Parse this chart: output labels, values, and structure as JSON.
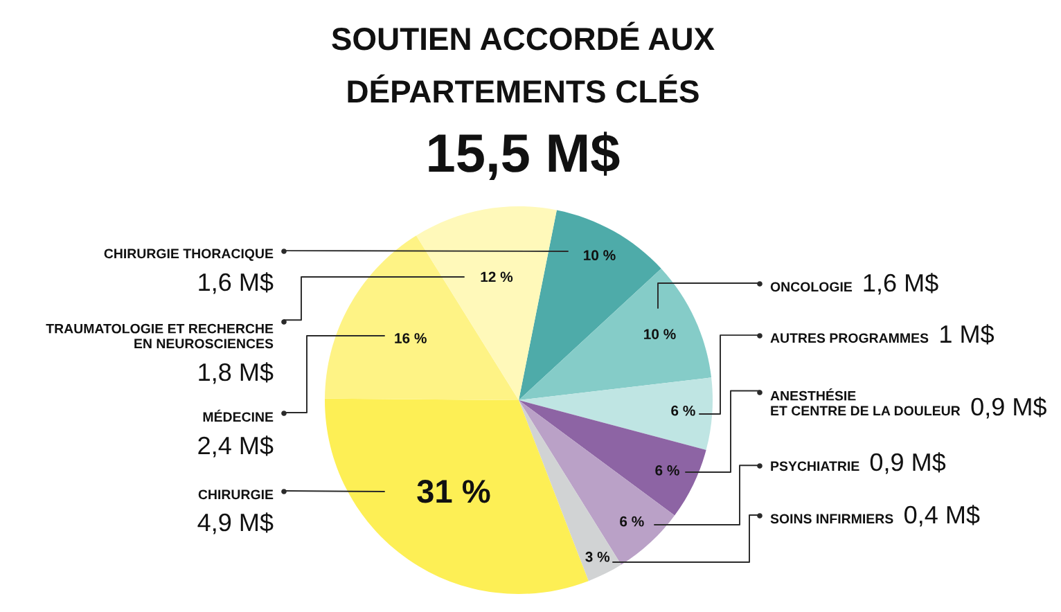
{
  "chart_data": {
    "type": "pie",
    "title": "SOUTIEN ACCORDÉ AUX\nDÉPARTEMENTS CLÉS",
    "subtitle": "15,5 M$",
    "categories": [
      "CHIRURGIE THORACIQUE",
      "ONCOLOGIE",
      "AUTRES PROGRAMMES",
      "ANESTHÉSIE\nET CENTRE DE LA DOULEUR",
      "PSYCHIATRIE",
      "SOINS INFIRMIERS",
      "CHIRURGIE",
      "MÉDECINE",
      "TRAUMATOLOGIE ET RECHERCHE\nEN NEUROSCIENCES"
    ],
    "values": [
      10,
      10,
      6,
      6,
      6,
      3,
      31,
      16,
      12
    ],
    "value_labels": [
      "10 %",
      "10 %",
      "6 %",
      "6 %",
      "6 %",
      "3 %",
      "31 %",
      "16 %",
      "12 %"
    ],
    "colors": [
      "#4eaba9",
      "#85ccc8",
      "#bfe5e3",
      "#8d64a4",
      "#baa1c7",
      "#d1d3d4",
      "#fdef55",
      "#fef385",
      "#fff9ba"
    ],
    "annotations": [
      "1,6 M$",
      "1,6 M$",
      "1 M$",
      "0,9 M$",
      "0,9 M$",
      "0,4 M$",
      "4,9 M$",
      "2,4 M$",
      "1,8 M$"
    ]
  }
}
